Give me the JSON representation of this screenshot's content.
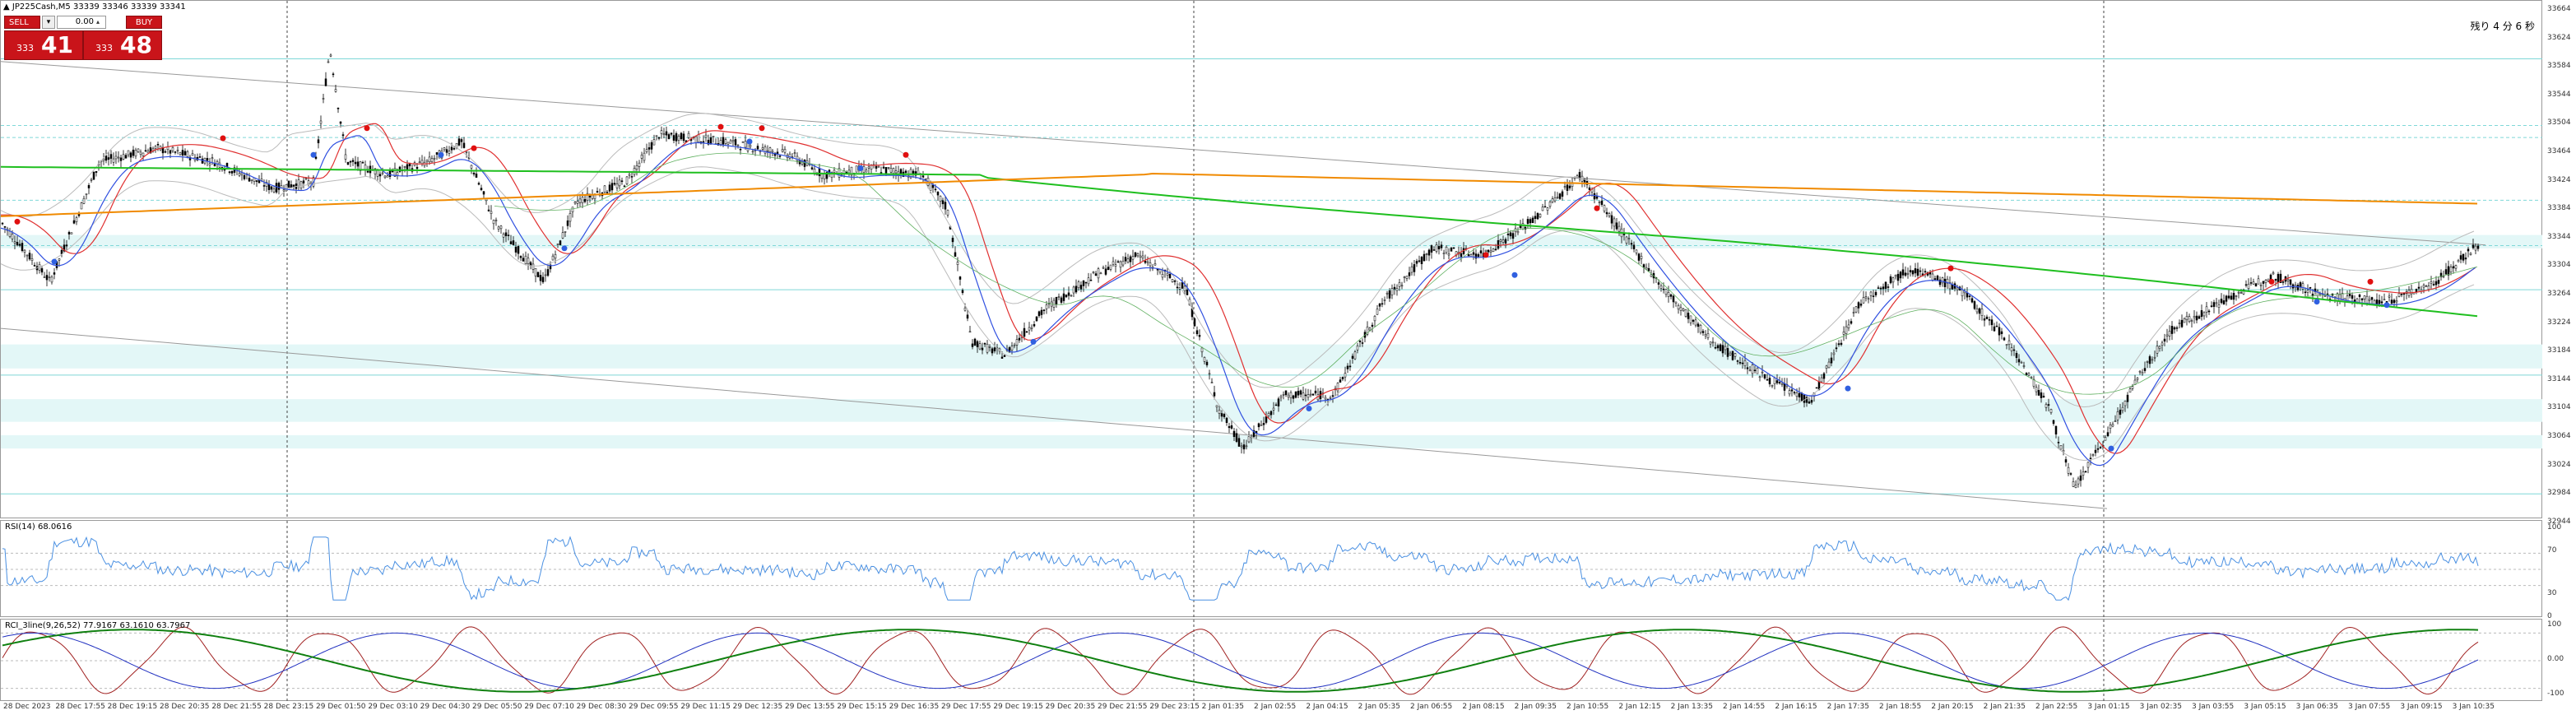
{
  "header": {
    "symbol_title": "JP225Cash,M5",
    "ohlc": "33339 33346 33339 33341",
    "countdown": "残り 4 分 6 秒"
  },
  "trade_panel": {
    "sell_label": "SELL",
    "buy_label": "BUY",
    "volume": "0.00",
    "sell_quote_small": "333",
    "sell_quote_big": "41",
    "buy_quote_small": "333",
    "buy_quote_big": "48",
    "button_color": "#c9141a"
  },
  "price_axis": {
    "labels": [
      "33664",
      "33624",
      "33584",
      "33544",
      "33504",
      "33464",
      "33424",
      "33384",
      "33344",
      "33304",
      "33264",
      "33224",
      "33184",
      "33144",
      "33104",
      "33064",
      "33024",
      "32984",
      "32944"
    ]
  },
  "rsi": {
    "label": "RSI(14) 68.0616",
    "scale": [
      "100",
      "70",
      "30",
      "0"
    ]
  },
  "rci": {
    "label": "RCI_3line(9,26,52) 77.9167 63.1610 63.7967",
    "scale": [
      "100",
      "0.00",
      "-100"
    ]
  },
  "time_axis": {
    "labels": [
      "28 Dec 2023",
      "28 Dec 17:55",
      "28 Dec 19:15",
      "28 Dec 20:35",
      "28 Dec 21:55",
      "28 Dec 23:15",
      "29 Dec 01:50",
      "29 Dec 03:10",
      "29 Dec 04:30",
      "29 Dec 05:50",
      "29 Dec 07:10",
      "29 Dec 08:30",
      "29 Dec 09:55",
      "29 Dec 11:15",
      "29 Dec 12:35",
      "29 Dec 13:55",
      "29 Dec 15:15",
      "29 Dec 16:35",
      "29 Dec 17:55",
      "29 Dec 19:15",
      "29 Dec 20:35",
      "29 Dec 21:55",
      "29 Dec 23:15",
      "2 Jan 01:35",
      "2 Jan 02:55",
      "2 Jan 04:15",
      "2 Jan 05:35",
      "2 Jan 06:55",
      "2 Jan 08:15",
      "2 Jan 09:35",
      "2 Jan 10:55",
      "2 Jan 12:15",
      "2 Jan 13:35",
      "2 Jan 14:55",
      "2 Jan 16:15",
      "2 Jan 17:35",
      "2 Jan 18:55",
      "2 Jan 20:15",
      "2 Jan 21:35",
      "2 Jan 22:55",
      "3 Jan 01:15",
      "3 Jan 02:35",
      "3 Jan 03:55",
      "3 Jan 05:15",
      "3 Jan 06:35",
      "3 Jan 07:55",
      "3 Jan 09:15",
      "3 Jan 10:35"
    ]
  },
  "colors": {
    "zone": "#e3f7f7",
    "zone_line": "#7fd8d8",
    "ma_green": "#1fbf1f",
    "ma_orange": "#f08a00",
    "line_red": "#e03030",
    "line_blue": "#3050e0",
    "rsi_line": "#4a90e2",
    "rci_red": "#a02020",
    "rci_blue": "#2030c0",
    "rci_green": "#108010"
  }
}
